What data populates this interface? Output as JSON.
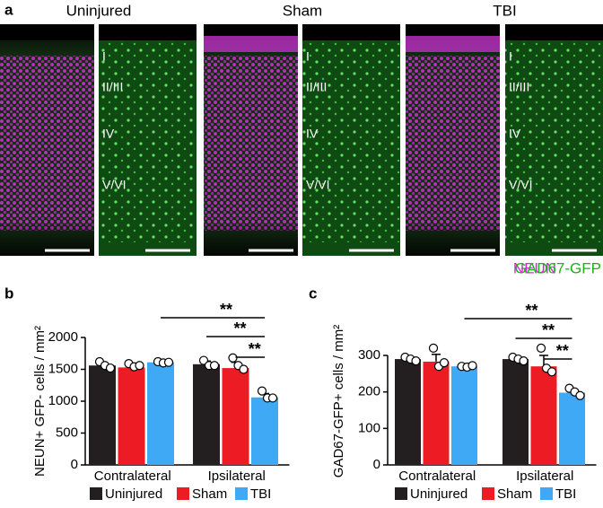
{
  "panel_a": {
    "label": "a",
    "groups": [
      "Uninjured",
      "Sham",
      "TBI"
    ],
    "layers": [
      "I",
      "II/III",
      "IV",
      "V/VI"
    ],
    "legend": [
      "NEUN",
      "GAD67-GFP"
    ]
  },
  "chart_data": [
    {
      "type": "bar",
      "panel_label": "b",
      "ylabel": "NEUN+ GFP- cells / mm²",
      "categories": [
        "Contralateral",
        "Ipsilateral"
      ],
      "series": [
        {
          "name": "Uninjured",
          "color": "#231f20",
          "values": [
            1560,
            1580
          ],
          "errors": [
            40,
            50
          ],
          "points": [
            [
              1620,
              1560,
              1520
            ],
            [
              1640,
              1560,
              1560
            ]
          ]
        },
        {
          "name": "Sham",
          "color": "#ed1c24",
          "values": [
            1530,
            1520
          ],
          "errors": [
            60,
            90
          ],
          "points": [
            [
              1590,
              1540,
              1560
            ],
            [
              1680,
              1560,
              1500
            ]
          ]
        },
        {
          "name": "TBI",
          "color": "#3fa9f5",
          "values": [
            1610,
            1060
          ],
          "errors": [
            20,
            60
          ],
          "points": [
            [
              1620,
              1600,
              1610
            ],
            [
              1160,
              1050,
              1050
            ]
          ]
        }
      ],
      "ylim": [
        0,
        2000
      ],
      "yticks": [
        0,
        500,
        1000,
        1500,
        2000
      ],
      "annotations": [
        "**",
        "**",
        "**"
      ]
    },
    {
      "type": "bar",
      "panel_label": "c",
      "ylabel": "GAD67-GFP+ cells / mm²",
      "categories": [
        "Contralateral",
        "Ipsilateral"
      ],
      "series": [
        {
          "name": "Uninjured",
          "color": "#231f20",
          "values": [
            290,
            290
          ],
          "errors": [
            8,
            6
          ],
          "points": [
            [
              295,
              290,
              285
            ],
            [
              295,
              290,
              285
            ]
          ]
        },
        {
          "name": "Sham",
          "color": "#ed1c24",
          "values": [
            283,
            270
          ],
          "errors": [
            20,
            30
          ],
          "points": [
            [
              320,
              270,
              280
            ],
            [
              320,
              265,
              255
            ]
          ]
        },
        {
          "name": "TBI",
          "color": "#3fa9f5",
          "values": [
            270,
            198
          ],
          "errors": [
            6,
            12
          ],
          "points": [
            [
              270,
              268,
              272
            ],
            [
              210,
              200,
              190
            ]
          ]
        }
      ],
      "ylim": [
        0,
        300
      ],
      "yticks": [
        0,
        100,
        200,
        300
      ],
      "annotations": [
        "**",
        "**",
        "**"
      ]
    }
  ]
}
